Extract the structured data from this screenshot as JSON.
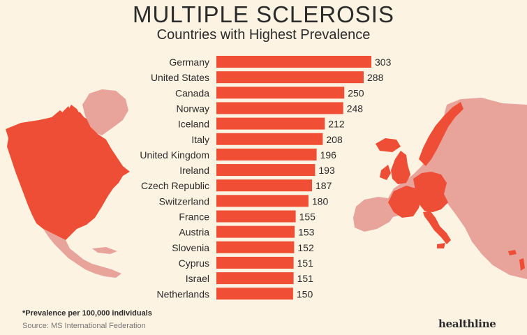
{
  "header": {
    "title": "MULTIPLE SCLEROSIS",
    "subtitle": "Countries with Highest Prevalence"
  },
  "footer": {
    "footnote": "*Prevalence per 100,000 individuals",
    "source": "Source: MS International Federation",
    "brand": "healthline"
  },
  "colors": {
    "bar": "#f04f36",
    "map_highlight": "#ef4e36",
    "map_muted": "#e8a39b",
    "background": "#fcf3e2",
    "text": "#2b2b2b"
  },
  "chart_data": {
    "type": "bar",
    "orientation": "horizontal",
    "title": "MULTIPLE SCLEROSIS",
    "subtitle": "Countries with Highest Prevalence",
    "categories": [
      "Germany",
      "United States",
      "Canada",
      "Norway",
      "Iceland",
      "Italy",
      "United Kingdom",
      "Ireland",
      "Czech Republic",
      "Switzerland",
      "France",
      "Austria",
      "Slovenia",
      "Cyprus",
      "Israel",
      "Netherlands"
    ],
    "values": [
      303,
      288,
      250,
      248,
      212,
      208,
      196,
      193,
      187,
      180,
      155,
      153,
      152,
      151,
      151,
      150
    ],
    "xlim": [
      0,
      303
    ],
    "grid": false,
    "legend": "none"
  }
}
